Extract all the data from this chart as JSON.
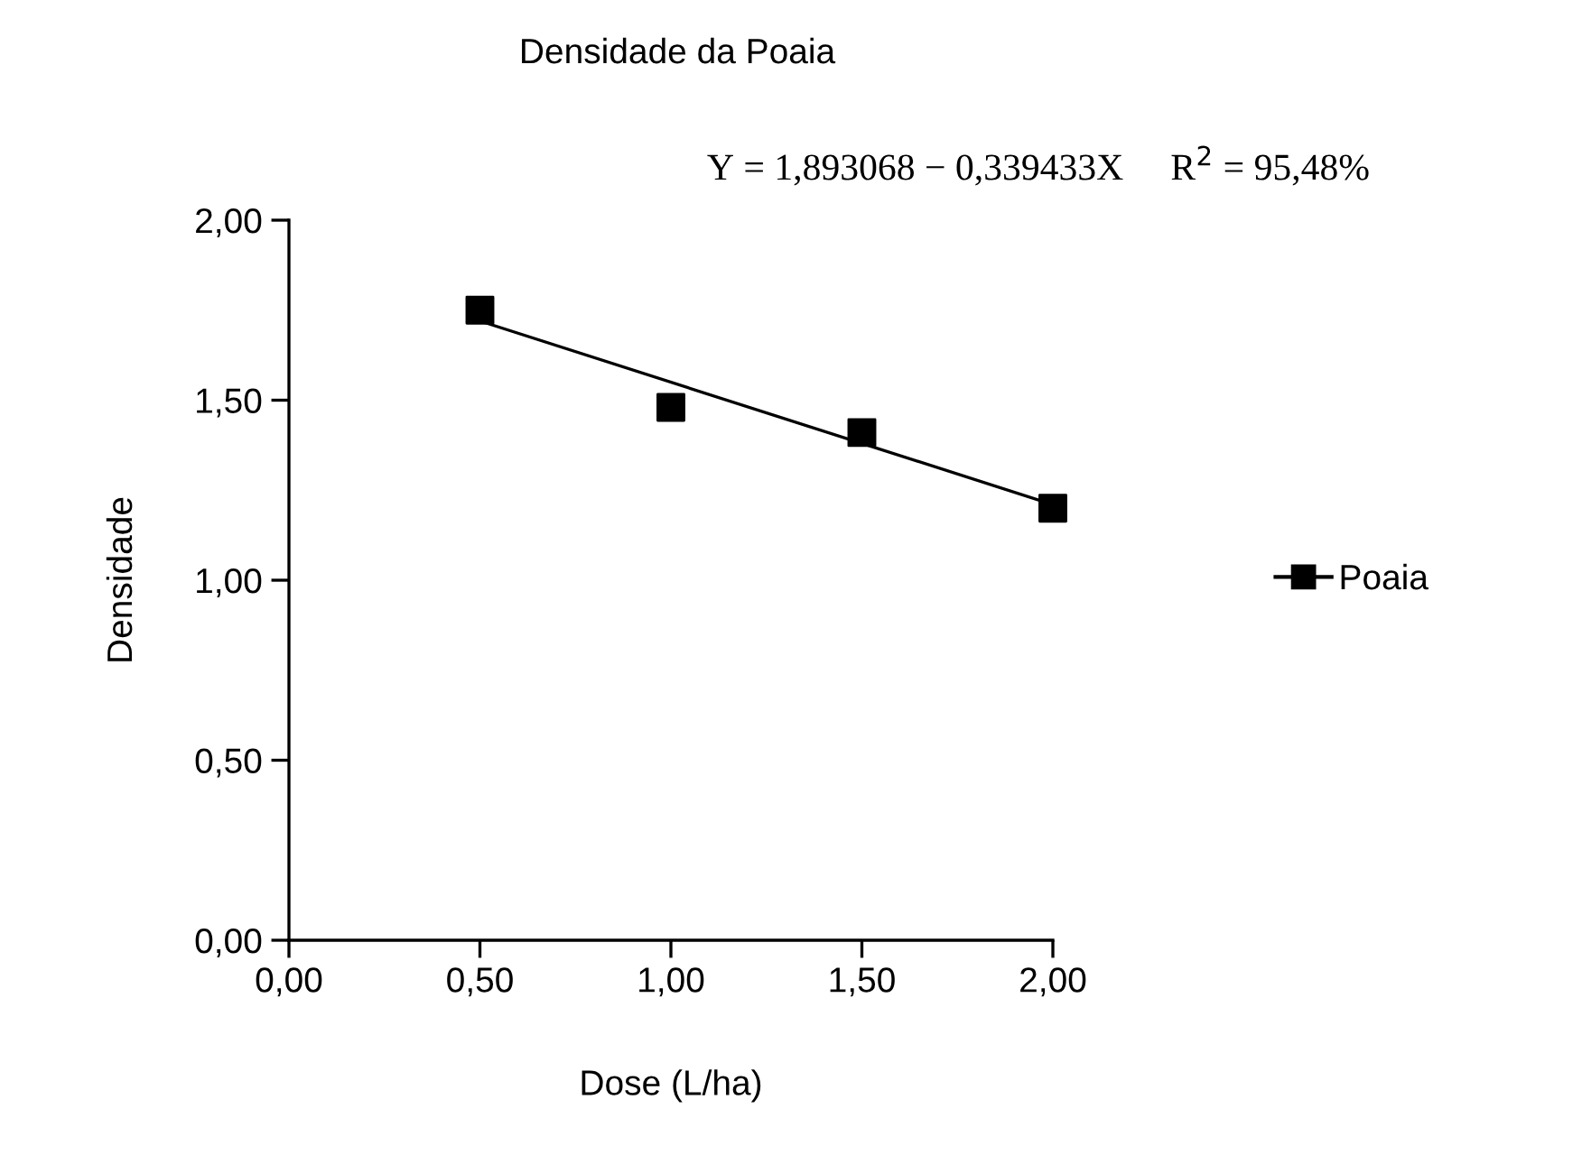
{
  "chart_data": {
    "type": "scatter",
    "title": "Densidade da Poaia",
    "xlabel": "Dose (L/ha)",
    "ylabel": "Densidade",
    "annotations": [
      "Y = 1,893068 − 0,339433X     R$^{2}$ = 95,48%"
    ],
    "series": [
      {
        "name": "Poaia",
        "color": "#000000",
        "marker": "square",
        "x": [
          0.5,
          1.0,
          1.5,
          2.0
        ],
        "values": [
          1.75,
          1.48,
          1.41,
          1.2
        ]
      },
      {
        "type": "line",
        "color": "#000000",
        "marker": "none",
        "line_style": "solid",
        "x": [
          0.5,
          2.0
        ],
        "values": [
          1.72,
          1.21
        ]
      }
    ],
    "xlim": [
      0,
      2
    ],
    "ylim": [
      0,
      2
    ],
    "xticks": [
      {
        "value": 0,
        "label": "0,00"
      },
      {
        "value": 0.5,
        "label": "0,50"
      },
      {
        "value": 1,
        "label": "1,00"
      },
      {
        "value": 1.5,
        "label": "1,50"
      },
      {
        "value": 2,
        "label": "2,00"
      }
    ],
    "yticks": [
      {
        "value": 0,
        "label": "0,00"
      },
      {
        "value": 0.5,
        "label": "0,50"
      },
      {
        "value": 1,
        "label": "1,00"
      },
      {
        "value": 1.5,
        "label": "1,50"
      },
      {
        "value": 2,
        "label": "2,00"
      }
    ],
    "grid": false,
    "legend": "right"
  }
}
